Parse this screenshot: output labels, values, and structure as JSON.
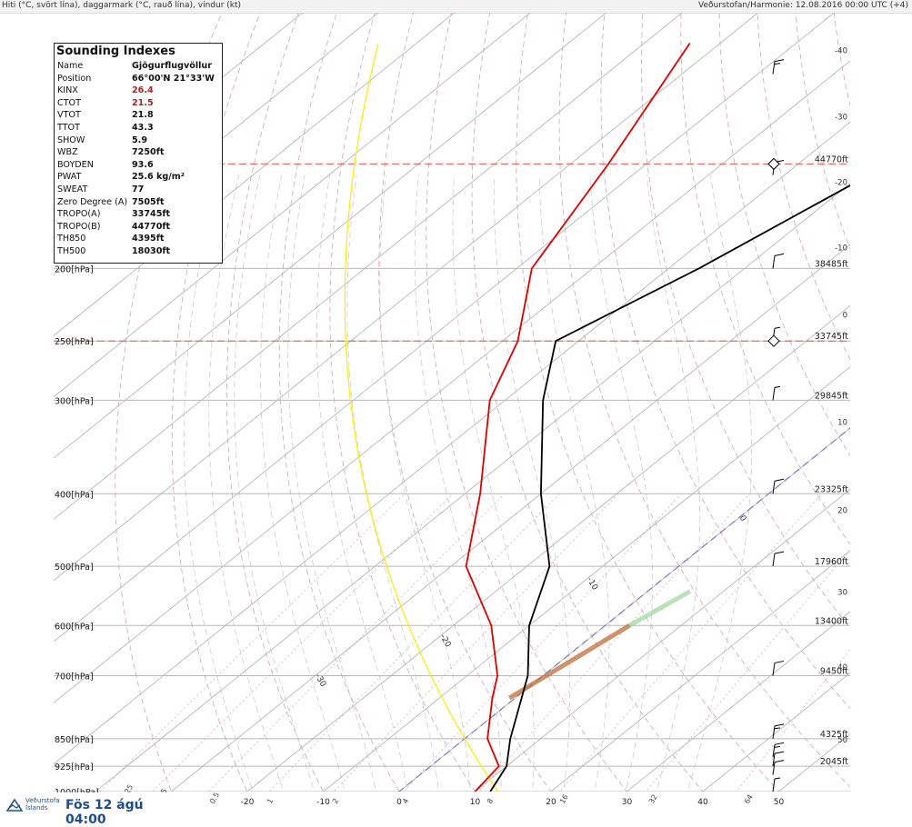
{
  "header": {
    "left": "Hiti (°C, svört lína), daggarmark (°C, rauð lína), vindur (kt)",
    "right": "Veðurstofan/Harmonie: 12.08.2016 00:00 UTC (+4)"
  },
  "index_box": {
    "title": "Sounding Indexes",
    "rows": [
      {
        "k": "Name",
        "v": "Gjögurflugvöllur",
        "red": false
      },
      {
        "k": "Position",
        "v": "66°00'N 21°33'W",
        "red": false
      },
      {
        "k": "KINX",
        "v": "26.4",
        "red": true
      },
      {
        "k": "CTOT",
        "v": "21.5",
        "red": true
      },
      {
        "k": "VTOT",
        "v": "21.8",
        "red": false
      },
      {
        "k": "TTOT",
        "v": "43.3",
        "red": false
      },
      {
        "k": "SHOW",
        "v": "5.9",
        "red": false
      },
      {
        "k": "WBZ",
        "v": "7250ft",
        "red": false
      },
      {
        "k": "BOYDEN",
        "v": "93.6",
        "red": false
      },
      {
        "k": "PWAT",
        "v": "25.6 kg/m²",
        "red": false
      },
      {
        "k": "SWEAT",
        "v": "77",
        "red": false
      },
      {
        "k": "Zero Degree (A)",
        "v": "7505ft",
        "red": false
      },
      {
        "k": "TROPO(A)",
        "v": "33745ft",
        "red": false
      },
      {
        "k": "TROPO(B)",
        "v": "44770ft",
        "red": false
      },
      {
        "k": "TH850",
        "v": "4395ft",
        "red": false
      },
      {
        "k": "TH500",
        "v": "18030ft",
        "red": false
      }
    ]
  },
  "footer": {
    "org_line1": "Veðurstofa",
    "org_line2": "Íslands",
    "date": "Fös 12 ágú 04:00"
  },
  "chart_data": {
    "type": "line",
    "title": "",
    "pressure_labels": [
      {
        "p": 200,
        "label": "200[hPa]"
      },
      {
        "p": 250,
        "label": "250[hPa]"
      },
      {
        "p": 300,
        "label": "300[hPa]"
      },
      {
        "p": 400,
        "label": "400[hPa]"
      },
      {
        "p": 500,
        "label": "500[hPa]"
      },
      {
        "p": 600,
        "label": "600[hPa]"
      },
      {
        "p": 700,
        "label": "700[hPa]"
      },
      {
        "p": 850,
        "label": "850[hPa]"
      },
      {
        "p": 925,
        "label": "925[hPa]"
      },
      {
        "p": 1000,
        "label": "1000[hPa]"
      }
    ],
    "height_labels": [
      {
        "p": 145,
        "label": "44770ft"
      },
      {
        "p": 200,
        "label": "38485ft"
      },
      {
        "p": 250,
        "label": "33745ft"
      },
      {
        "p": 300,
        "label": "29845ft"
      },
      {
        "p": 400,
        "label": "23325ft"
      },
      {
        "p": 500,
        "label": "17960ft"
      },
      {
        "p": 600,
        "label": "13400ft"
      },
      {
        "p": 700,
        "label": "9450ft"
      },
      {
        "p": 850,
        "label": "4325ft"
      },
      {
        "p": 925,
        "label": "2045ft"
      }
    ],
    "bottom_temp_ticks": [
      -20,
      -10,
      0,
      10,
      20,
      30,
      40,
      50
    ],
    "right_temp_ticks": [
      {
        "p": 102,
        "t": -40
      },
      {
        "p": 125,
        "t": -30
      },
      {
        "p": 153,
        "t": -20
      },
      {
        "p": 187,
        "t": -10
      },
      {
        "p": 230,
        "t": 0
      },
      {
        "p": 320,
        "t": 10
      },
      {
        "p": 420,
        "t": 20
      },
      {
        "p": 540,
        "t": 30
      },
      {
        "p": 680,
        "t": 40
      },
      {
        "p": 850,
        "t": 50
      }
    ],
    "temperature": {
      "name": "Hiti",
      "color": "#000000",
      "points": [
        {
          "p": 1000,
          "t": 12
        },
        {
          "p": 925,
          "t": 10
        },
        {
          "p": 850,
          "t": 6
        },
        {
          "p": 700,
          "t": -2
        },
        {
          "p": 600,
          "t": -10
        },
        {
          "p": 500,
          "t": -17
        },
        {
          "p": 400,
          "t": -30
        },
        {
          "p": 300,
          "t": -45
        },
        {
          "p": 250,
          "t": -53
        },
        {
          "p": 200,
          "t": -46
        },
        {
          "p": 145,
          "t": -38
        },
        {
          "p": 100,
          "t": -44
        }
      ]
    },
    "dewpoint": {
      "name": "daggarmark",
      "color": "#dd0000",
      "points": [
        {
          "p": 1000,
          "t": 10
        },
        {
          "p": 925,
          "t": 9
        },
        {
          "p": 850,
          "t": 3
        },
        {
          "p": 750,
          "t": -3
        },
        {
          "p": 700,
          "t": -6
        },
        {
          "p": 600,
          "t": -15
        },
        {
          "p": 500,
          "t": -28
        },
        {
          "p": 400,
          "t": -38
        },
        {
          "p": 300,
          "t": -52
        },
        {
          "p": 250,
          "t": -58
        },
        {
          "p": 200,
          "t": -68
        },
        {
          "p": 145,
          "t": -75
        },
        {
          "p": 100,
          "t": -84
        }
      ]
    },
    "tropopause_levels": [
      145,
      250
    ],
    "freezing_level_hpa": 770,
    "winds": [
      {
        "p": 1000,
        "spd": 5
      },
      {
        "p": 950,
        "spd": 10
      },
      {
        "p": 925,
        "spd": 10
      },
      {
        "p": 900,
        "spd": 15
      },
      {
        "p": 850,
        "spd": 15
      },
      {
        "p": 700,
        "spd": 10
      },
      {
        "p": 500,
        "spd": 10
      },
      {
        "p": 400,
        "spd": 10
      },
      {
        "p": 300,
        "spd": 5
      },
      {
        "p": 250,
        "spd": 5
      },
      {
        "p": 200,
        "spd": 10
      },
      {
        "p": 150,
        "spd": 10
      },
      {
        "p": 110,
        "spd": 15
      }
    ],
    "isotherm_labels": [
      "30",
      "20",
      "10",
      "0",
      "-10",
      "-20",
      "-30"
    ],
    "mixing_ratio_labels": [
      "0.125",
      "0.25",
      "0.5",
      "1",
      "2",
      "4",
      "8",
      "16",
      "32",
      "64"
    ],
    "colors": {
      "grid": "#b8b8b8",
      "temp": "#000000",
      "dew": "#dd0000",
      "dry_adiabat": "#d9a0b8",
      "moist_adiabat": "#cfcfcf",
      "parcel": "#ffea00",
      "tropo": "#ee5555",
      "freezing": "#7777dd",
      "cape": "#c0703a"
    }
  }
}
